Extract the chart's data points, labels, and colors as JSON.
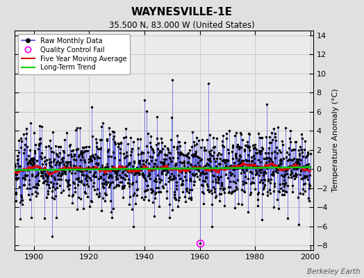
{
  "title": "WAYNESVILLE-1E",
  "subtitle": "35.500 N, 83.000 W (United States)",
  "ylabel": "Temperature Anomaly (°C)",
  "watermark": "Berkeley Earth",
  "year_start": 1893,
  "year_end": 2000,
  "xlim": [
    1893,
    2001
  ],
  "ylim": [
    -8.5,
    14.5
  ],
  "yticks": [
    -8,
    -6,
    -4,
    -2,
    0,
    2,
    4,
    6,
    8,
    10,
    12,
    14
  ],
  "xticks": [
    1900,
    1920,
    1940,
    1960,
    1980,
    2000
  ],
  "bg_color": "#e0e0e0",
  "plot_bg_color": "#ebebeb",
  "raw_line_color": "#4444dd",
  "raw_marker_color": "#000000",
  "moving_avg_color": "#dd0000",
  "trend_color": "#00cc00",
  "qc_fail_color": "#ff00ff",
  "seed": 15,
  "n_months": 1284,
  "moving_avg_window": 60,
  "trend_slope": 0.001,
  "noise_std": 1.9
}
